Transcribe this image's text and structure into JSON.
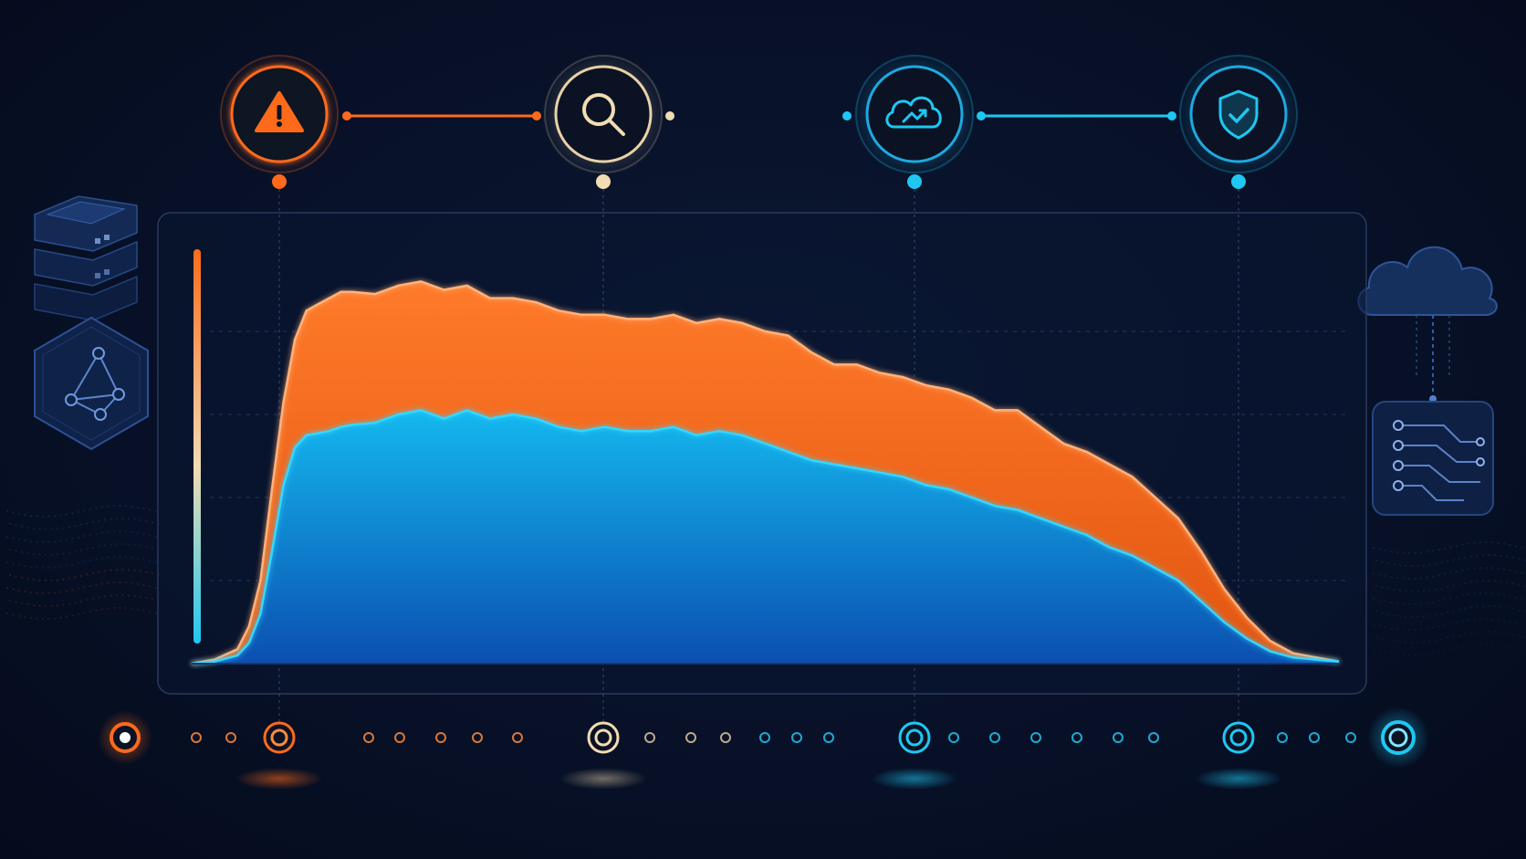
{
  "stages": [
    {
      "icon": "warning-icon",
      "color": "#ff6a1a"
    },
    {
      "icon": "search-icon",
      "color": "#f2dcb2"
    },
    {
      "icon": "cloud-trend-icon",
      "color": "#1ec8f2"
    },
    {
      "icon": "shield-check-icon",
      "color": "#1ec8f2"
    }
  ],
  "side_icons": {
    "left": [
      "server-stack-icon",
      "network-hexagon-icon"
    ],
    "right": [
      "cloud-icon",
      "circuit-board-icon"
    ]
  },
  "colors": {
    "orange": "#ff6a1a",
    "beige": "#f2dcb2",
    "cyan": "#1ec8f2",
    "blue": "#0f6fd0",
    "background": "#060d20"
  },
  "chart_data": {
    "type": "area",
    "stacked": true,
    "grid": true,
    "xlim": [
      0,
      100
    ],
    "ylim": [
      0,
      100
    ],
    "x": [
      0,
      2,
      4,
      5,
      6,
      7,
      8,
      9,
      10,
      11,
      12,
      13,
      14,
      16,
      18,
      20,
      22,
      24,
      26,
      28,
      30,
      32,
      34,
      36,
      38,
      40,
      42,
      44,
      46,
      48,
      50,
      52,
      54,
      56,
      58,
      60,
      62,
      64,
      66,
      68,
      70,
      72,
      74,
      76,
      78,
      80,
      82,
      84,
      86,
      88,
      90,
      92,
      94,
      96,
      98,
      100
    ],
    "series": [
      {
        "color": "#1ec8f2",
        "values": [
          0,
          0.5,
          2,
          5,
          12,
          27,
          43,
          52,
          55,
          55.5,
          56,
          57,
          57.5,
          58,
          60,
          61,
          59,
          61,
          59,
          60,
          59,
          57,
          56,
          57,
          56,
          56,
          57,
          55,
          56,
          55,
          53,
          51,
          49,
          48,
          47,
          46,
          45,
          43,
          42,
          40,
          38,
          37,
          35,
          33,
          31,
          28,
          26,
          23,
          20,
          15,
          10,
          6,
          3,
          1.5,
          1,
          0.5
        ]
      },
      {
        "color": "#ff6a1a",
        "values": [
          0,
          0.5,
          1.5,
          4,
          8,
          15,
          20,
          26,
          30,
          31,
          32,
          32.5,
          32,
          31,
          31,
          31,
          31,
          30,
          29,
          28,
          28,
          28,
          28,
          27,
          27,
          27,
          27,
          27,
          27,
          27,
          27,
          28,
          26,
          24,
          25,
          24,
          24,
          24,
          24,
          24,
          23,
          24,
          22,
          20,
          20,
          20,
          19,
          17,
          15,
          12,
          8,
          5,
          2.5,
          1,
          0.5,
          0
        ]
      }
    ]
  }
}
